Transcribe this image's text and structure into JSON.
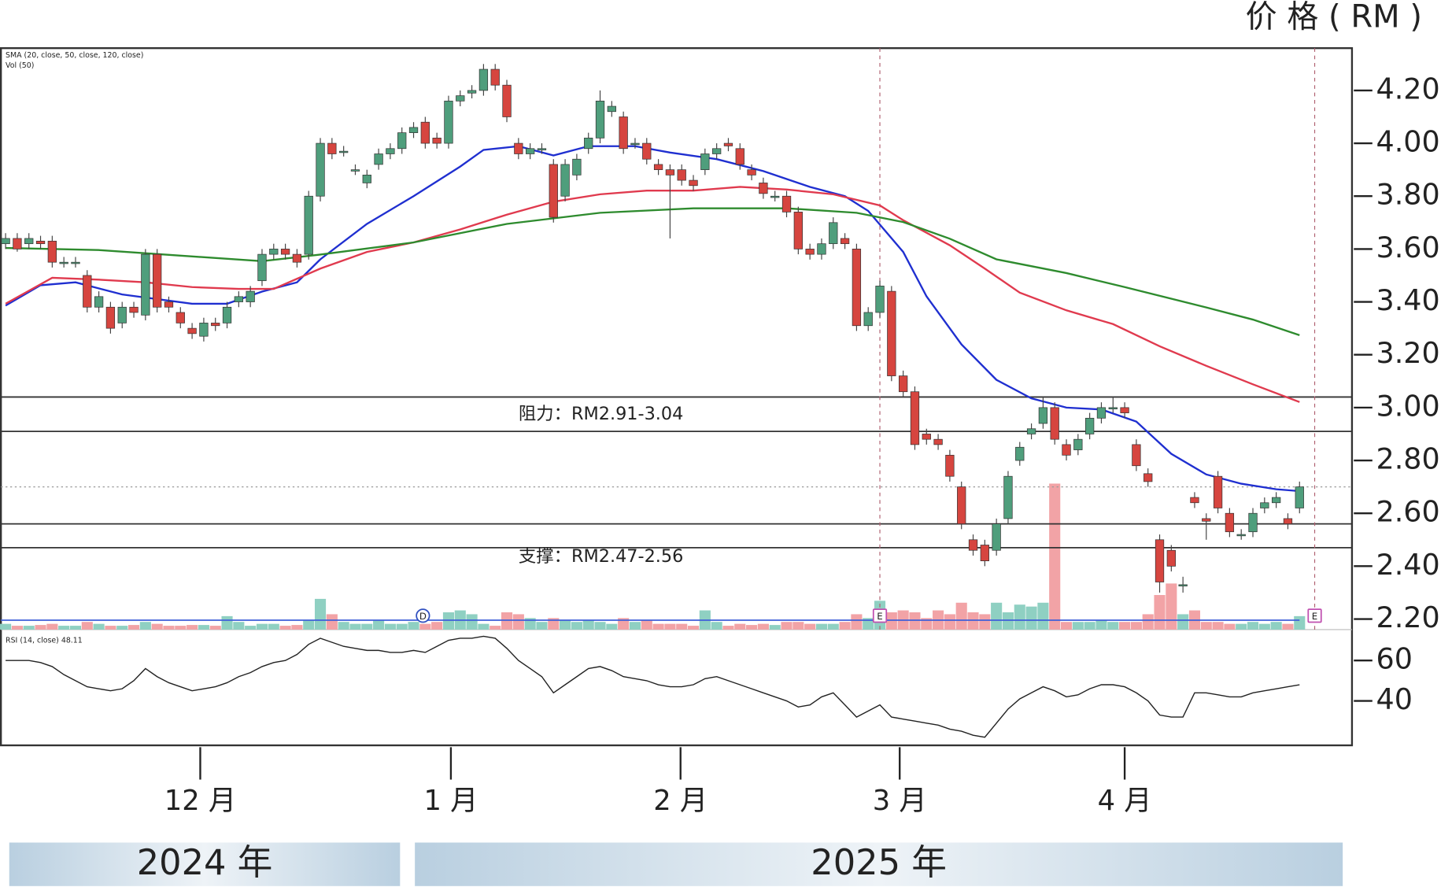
{
  "chart_data": {
    "type": "candlestick",
    "ylabel": "价 格 ( RM )",
    "legend_texts": [
      "SMA (20, close, 50, close, 120, close)",
      "Vol (50)",
      "RSI (14, close) 48.11"
    ],
    "xlim": [
      -0.4,
      115.5
    ],
    "ylim": [
      2.16,
      4.36
    ],
    "yticks": [
      {
        "value": 4.2,
        "label": "4.20"
      },
      {
        "value": 4.0,
        "label": "4.00"
      },
      {
        "value": 3.8,
        "label": "3.80"
      },
      {
        "value": 3.6,
        "label": "3.60"
      },
      {
        "value": 3.4,
        "label": "3.40"
      },
      {
        "value": 3.2,
        "label": "3.20"
      },
      {
        "value": 3.0,
        "label": "3.00"
      },
      {
        "value": 2.8,
        "label": "2.80"
      },
      {
        "value": 2.6,
        "label": "2.60"
      },
      {
        "value": 2.4,
        "label": "2.40"
      },
      {
        "value": 2.2,
        "label": "2.20"
      }
    ],
    "xticks": [
      {
        "value": 16.7,
        "label": "12 月"
      },
      {
        "value": 38.2,
        "label": "1 月"
      },
      {
        "value": 57.9,
        "label": "2 月"
      },
      {
        "value": 76.7,
        "label": "3 月"
      },
      {
        "value": 96,
        "label": "4 月"
      }
    ],
    "years": [
      "2024 年",
      "2025 年"
    ],
    "up_color": "#4f9e7c",
    "down_color": "#d6453f",
    "candles": {
      "open": [
        3.62,
        3.64,
        3.62,
        3.63,
        3.63,
        3.55,
        3.55,
        3.5,
        3.38,
        3.38,
        3.32,
        3.38,
        3.35,
        3.58,
        3.4,
        3.36,
        3.3,
        3.27,
        3.32,
        3.32,
        3.4,
        3.4,
        3.48,
        3.58,
        3.6,
        3.58,
        3.58,
        3.8,
        4.0,
        3.97,
        3.9,
        3.85,
        3.92,
        3.96,
        3.98,
        4.04,
        4.08,
        4.02,
        4.0,
        4.16,
        4.19,
        4.2,
        4.28,
        4.22,
        4.0,
        3.96,
        3.98,
        3.92,
        3.8,
        3.88,
        3.98,
        4.02,
        4.12,
        4.1,
        4.0,
        4.0,
        3.92,
        3.9,
        3.9,
        3.86,
        3.9,
        3.96,
        4.0,
        3.98,
        3.9,
        3.85,
        3.8,
        3.8,
        3.74,
        3.6,
        3.58,
        3.62,
        3.64,
        3.6,
        3.31,
        3.36,
        3.44,
        3.12,
        3.06,
        2.9,
        2.88,
        2.82,
        2.7,
        2.5,
        2.48,
        2.46,
        2.58,
        2.8,
        2.9,
        2.94,
        3.0,
        2.86,
        2.84,
        2.9,
        2.96,
        3.0,
        3.0,
        2.86,
        2.75,
        2.5,
        2.46,
        2.33,
        2.66,
        2.58,
        2.74,
        2.6,
        2.52,
        2.53,
        2.62,
        2.64,
        2.58,
        2.62
      ],
      "high": [
        3.66,
        3.66,
        3.66,
        3.65,
        3.65,
        3.57,
        3.57,
        3.52,
        3.44,
        3.4,
        3.4,
        3.4,
        3.6,
        3.6,
        3.42,
        3.38,
        3.32,
        3.34,
        3.34,
        3.4,
        3.44,
        3.46,
        3.6,
        3.62,
        3.62,
        3.6,
        3.82,
        4.02,
        4.02,
        3.99,
        3.92,
        3.9,
        3.98,
        4.0,
        4.06,
        4.08,
        4.1,
        4.04,
        4.18,
        4.2,
        4.22,
        4.3,
        4.3,
        4.24,
        4.02,
        4.0,
        4.0,
        3.94,
        3.94,
        3.96,
        4.04,
        4.2,
        4.16,
        4.12,
        4.02,
        4.02,
        3.94,
        3.92,
        3.92,
        3.88,
        3.98,
        4.0,
        4.02,
        4.0,
        3.92,
        3.87,
        3.82,
        3.82,
        3.76,
        3.62,
        3.64,
        3.72,
        3.66,
        3.62,
        3.38,
        3.48,
        3.46,
        3.14,
        3.08,
        2.92,
        2.9,
        2.84,
        2.72,
        2.52,
        2.5,
        2.58,
        2.76,
        2.87,
        2.94,
        3.04,
        3.02,
        2.88,
        2.9,
        2.98,
        3.02,
        3.04,
        3.02,
        2.88,
        2.77,
        2.52,
        2.48,
        2.36,
        2.68,
        2.6,
        2.76,
        2.62,
        2.54,
        2.62,
        2.66,
        2.68,
        2.6,
        2.72
      ],
      "low": [
        3.6,
        3.59,
        3.6,
        3.6,
        3.53,
        3.53,
        3.53,
        3.36,
        3.36,
        3.28,
        3.3,
        3.34,
        3.33,
        3.36,
        3.36,
        3.3,
        3.26,
        3.25,
        3.29,
        3.3,
        3.38,
        3.38,
        3.46,
        3.56,
        3.56,
        3.53,
        3.56,
        3.78,
        3.94,
        3.95,
        3.88,
        3.83,
        3.9,
        3.94,
        3.96,
        4.02,
        3.98,
        3.98,
        3.98,
        4.14,
        4.17,
        4.18,
        4.2,
        4.08,
        3.94,
        3.94,
        3.96,
        3.7,
        3.78,
        3.86,
        3.96,
        4.0,
        4.1,
        3.96,
        3.98,
        3.92,
        3.88,
        3.64,
        3.84,
        3.82,
        3.88,
        3.94,
        3.97,
        3.9,
        3.86,
        3.79,
        3.78,
        3.72,
        3.58,
        3.56,
        3.56,
        3.6,
        3.6,
        3.29,
        3.29,
        3.34,
        3.1,
        3.04,
        2.84,
        2.86,
        2.84,
        2.72,
        2.54,
        2.44,
        2.4,
        2.44,
        2.56,
        2.78,
        2.88,
        2.92,
        2.86,
        2.8,
        2.82,
        2.88,
        2.94,
        2.98,
        2.96,
        2.76,
        2.7,
        2.3,
        2.38,
        2.3,
        2.62,
        2.5,
        2.6,
        2.51,
        2.5,
        2.51,
        2.6,
        2.62,
        2.54,
        2.6
      ],
      "close": [
        3.64,
        3.6,
        3.64,
        3.62,
        3.55,
        3.55,
        3.55,
        3.38,
        3.42,
        3.3,
        3.38,
        3.36,
        3.58,
        3.38,
        3.38,
        3.32,
        3.28,
        3.32,
        3.31,
        3.38,
        3.42,
        3.44,
        3.58,
        3.6,
        3.58,
        3.55,
        3.8,
        4.0,
        3.96,
        3.97,
        3.9,
        3.88,
        3.96,
        3.98,
        4.04,
        4.06,
        4.0,
        4.0,
        4.16,
        4.18,
        4.2,
        4.28,
        4.22,
        4.1,
        3.96,
        3.98,
        3.98,
        3.72,
        3.92,
        3.94,
        4.02,
        4.16,
        4.14,
        3.98,
        4.0,
        3.94,
        3.9,
        3.88,
        3.86,
        3.84,
        3.96,
        3.98,
        3.99,
        3.92,
        3.88,
        3.81,
        3.8,
        3.74,
        3.6,
        3.58,
        3.62,
        3.7,
        3.62,
        3.31,
        3.36,
        3.46,
        3.12,
        3.06,
        2.86,
        2.88,
        2.86,
        2.74,
        2.56,
        2.46,
        2.42,
        2.56,
        2.74,
        2.85,
        2.92,
        3.0,
        2.88,
        2.82,
        2.88,
        2.96,
        3.0,
        3.0,
        2.98,
        2.78,
        2.72,
        2.34,
        2.4,
        2.33,
        2.64,
        2.57,
        2.62,
        2.53,
        2.52,
        2.6,
        2.64,
        2.66,
        2.56,
        2.7
      ]
    },
    "ma": [
      {
        "color": "#1f2fd0",
        "x": [
          0,
          3,
          6,
          10,
          16,
          19,
          22,
          25,
          27,
          31,
          35,
          39,
          41,
          44,
          47,
          50,
          54,
          57,
          61,
          65,
          69,
          72,
          74,
          77,
          79,
          82,
          85,
          88,
          91,
          94,
          97,
          100,
          103,
          106,
          109,
          111
        ],
        "values": [
          3.386,
          3.463,
          3.474,
          3.428,
          3.393,
          3.393,
          3.439,
          3.474,
          3.561,
          3.695,
          3.8,
          3.912,
          3.975,
          3.989,
          3.954,
          3.989,
          3.989,
          3.965,
          3.94,
          3.895,
          3.835,
          3.8,
          3.744,
          3.589,
          3.421,
          3.239,
          3.105,
          3.035,
          3.0,
          2.993,
          2.947,
          2.825,
          2.747,
          2.712,
          2.691,
          2.684
        ]
      },
      {
        "color": "#e03a4e",
        "x": [
          0,
          4,
          8,
          12,
          16,
          20,
          23,
          27,
          31,
          35,
          39,
          43,
          47,
          51,
          55,
          59,
          63,
          67,
          71,
          75,
          77,
          81,
          84,
          87,
          91,
          95,
          99,
          103,
          107,
          111
        ],
        "values": [
          3.393,
          3.491,
          3.484,
          3.474,
          3.456,
          3.449,
          3.449,
          3.526,
          3.589,
          3.625,
          3.674,
          3.73,
          3.779,
          3.807,
          3.821,
          3.821,
          3.835,
          3.825,
          3.807,
          3.765,
          3.709,
          3.614,
          3.526,
          3.435,
          3.368,
          3.316,
          3.232,
          3.158,
          3.088,
          3.021
        ]
      },
      {
        "color": "#2e8b2e",
        "x": [
          0,
          8,
          16,
          22,
          27,
          35,
          43,
          51,
          59,
          67,
          73,
          77,
          81,
          85,
          91,
          96,
          103,
          107,
          111
        ],
        "values": [
          3.604,
          3.596,
          3.572,
          3.554,
          3.579,
          3.625,
          3.695,
          3.737,
          3.754,
          3.754,
          3.737,
          3.702,
          3.639,
          3.561,
          3.509,
          3.456,
          3.379,
          3.333,
          3.274
        ]
      }
    ],
    "zones": [
      {
        "label": "阻力：RM2.91-3.04",
        "low": 2.91,
        "high": 3.04
      },
      {
        "label": "支撑：RM2.47-2.56",
        "low": 2.47,
        "high": 2.56
      }
    ],
    "events": [
      {
        "label": "D",
        "x": 35.8,
        "divider": false
      },
      {
        "label": "E",
        "x": 75,
        "divider": true
      },
      {
        "label": "E",
        "x": 112.3,
        "divider": true
      }
    ],
    "volume": {
      "ylim": [
        0,
        40
      ],
      "up_color": "#8fd0c2",
      "down_color": "#f2a3a6",
      "ma_color": "#3f5fd8",
      "ma": 2.44,
      "values": [
        1.5,
        1,
        1,
        1.2,
        1.5,
        1,
        1,
        2,
        1.5,
        1,
        1,
        1.2,
        2,
        1.5,
        1,
        1,
        1.2,
        1.2,
        1,
        3.5,
        2,
        1,
        1.5,
        1.5,
        1,
        1.2,
        2.5,
        8,
        4,
        2,
        1.5,
        1.5,
        2.5,
        1.5,
        1.5,
        2,
        1.5,
        2,
        4.5,
        5,
        4,
        1.5,
        1,
        4.5,
        4,
        3,
        2,
        3,
        2.5,
        2,
        2.5,
        2,
        1.5,
        3,
        2,
        2.5,
        1.5,
        1.5,
        1.5,
        1,
        5,
        2,
        1,
        1.5,
        1.2,
        1.5,
        1.2,
        2,
        2,
        1.5,
        1.5,
        1.5,
        2,
        4,
        3,
        7.5,
        4.5,
        5,
        4.5,
        3,
        5,
        4,
        7,
        4.5,
        4,
        7,
        4.5,
        6.5,
        6,
        7,
        38,
        2,
        2,
        2,
        2.5,
        2,
        2,
        2,
        4,
        9,
        12,
        4,
        5,
        2,
        2,
        1.5,
        1.5,
        2,
        1.5,
        2,
        1.5,
        3.5
      ]
    },
    "rsi": {
      "ylim": [
        18,
        73
      ],
      "yticks": [
        60,
        40
      ],
      "color": "#222",
      "values": [
        60,
        60,
        60,
        59,
        57,
        53,
        50,
        47,
        46,
        45,
        46,
        50,
        56,
        52,
        49,
        47,
        45,
        46,
        47,
        49,
        52,
        54,
        57,
        59,
        60,
        63,
        68,
        71,
        69,
        67,
        66,
        65,
        65,
        64,
        64,
        65,
        64,
        67,
        70,
        71,
        71,
        72,
        71,
        66,
        60,
        56,
        52,
        44,
        48,
        52,
        56,
        57,
        55,
        52,
        51,
        50,
        48,
        47,
        47,
        48,
        51,
        52,
        50,
        48,
        46,
        44,
        42,
        40,
        37,
        38,
        42,
        44,
        38,
        32,
        35,
        38,
        32,
        31,
        30,
        29,
        28,
        26,
        25,
        23,
        22,
        29,
        36,
        41,
        44,
        47,
        45,
        42,
        43,
        46,
        48,
        48,
        47,
        44,
        40,
        33,
        32,
        32,
        44,
        44,
        43,
        42,
        42,
        44,
        45,
        46,
        47,
        48
      ]
    }
  }
}
